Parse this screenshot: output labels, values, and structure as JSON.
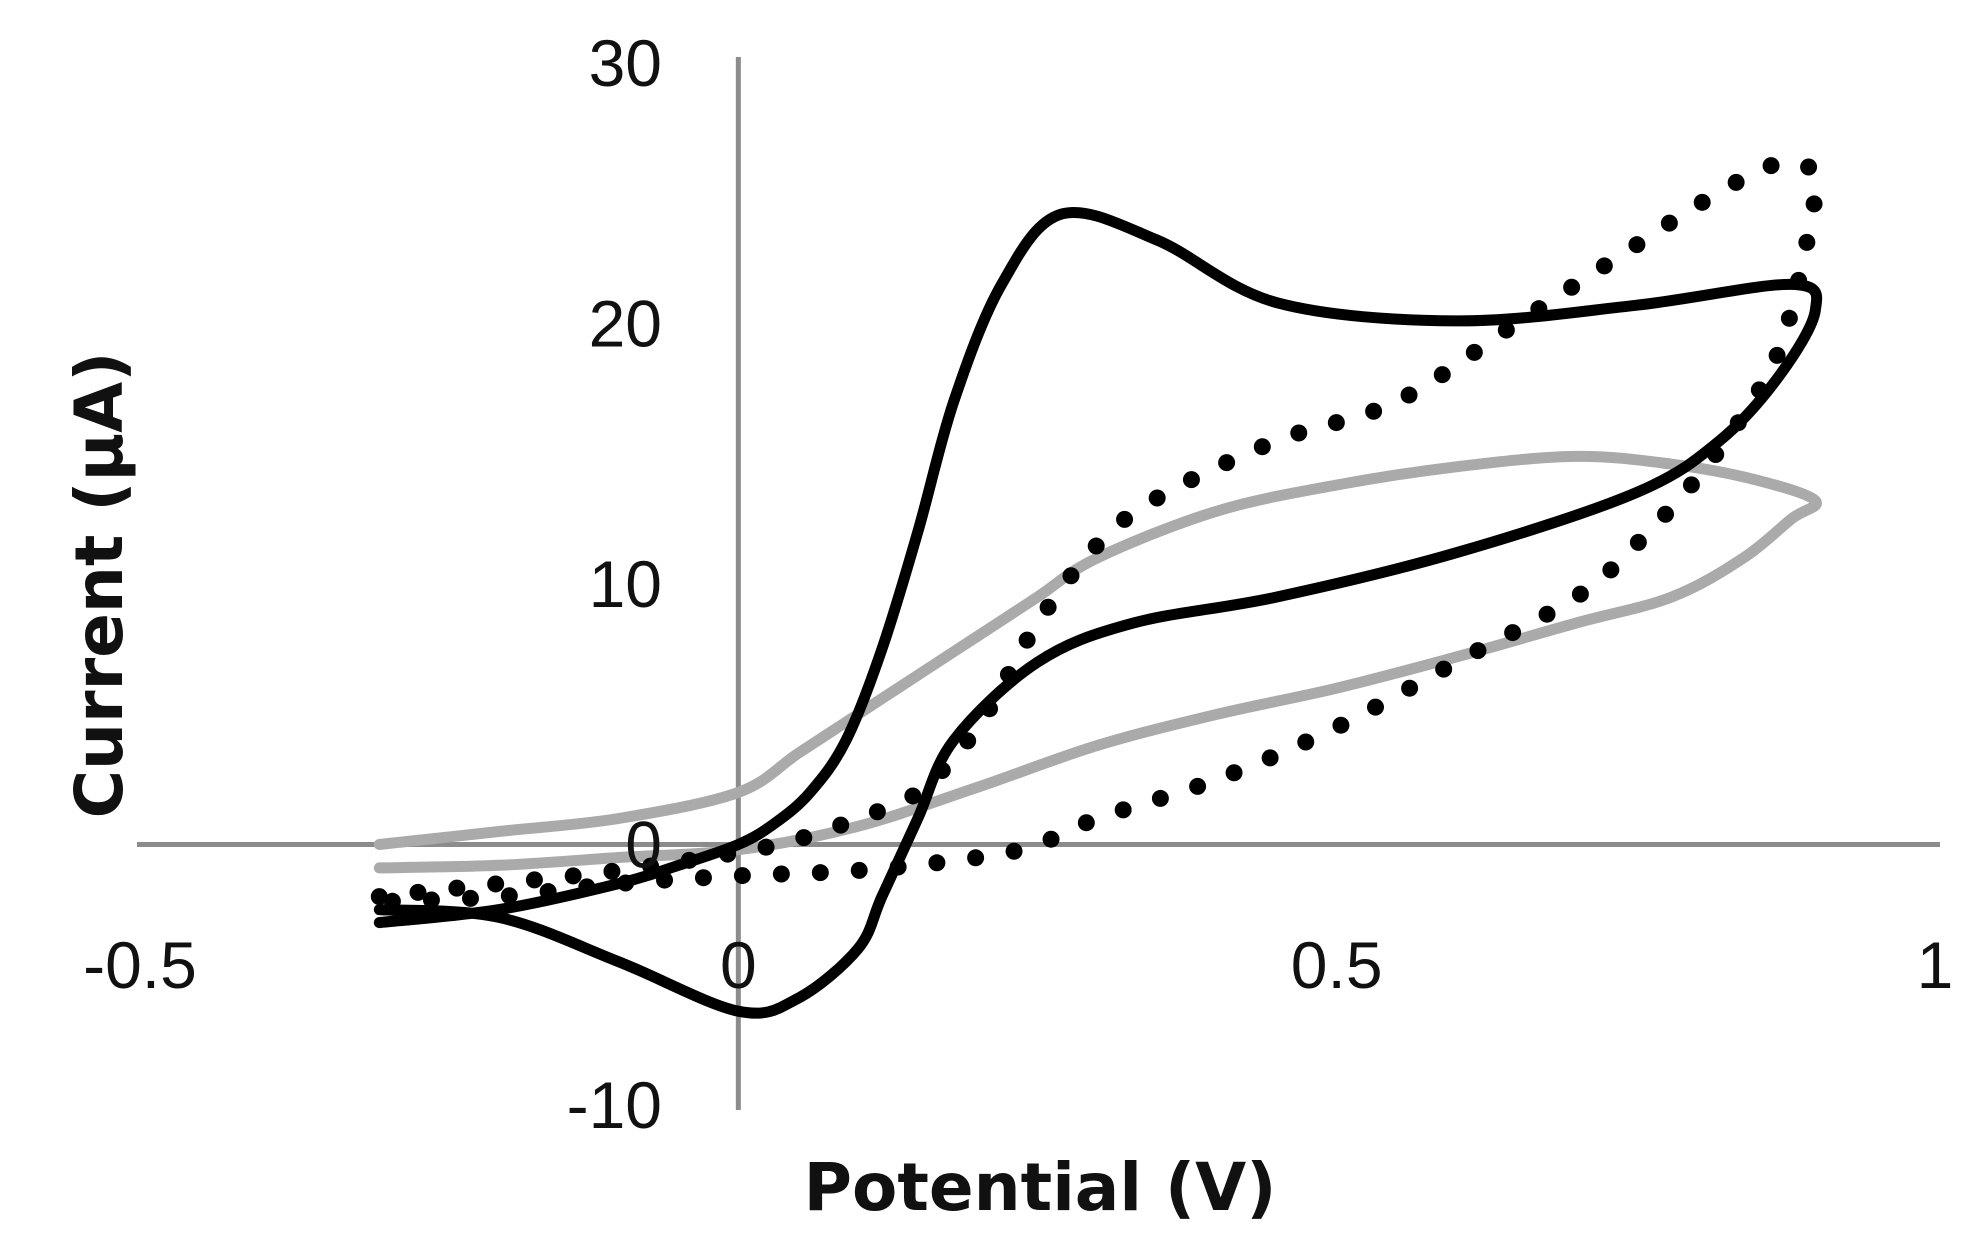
{
  "chart_data": {
    "type": "line",
    "title": "",
    "xlabel": "Potential (V)",
    "ylabel": "Current (μA)",
    "xlim": [
      -0.5,
      1
    ],
    "ylim": [
      -10,
      30
    ],
    "xticks": [
      {
        "value": -0.5,
        "label": "-0.5"
      },
      {
        "value": 0,
        "label": "0"
      },
      {
        "value": 0.5,
        "label": "0.5"
      },
      {
        "value": 1,
        "label": "1"
      }
    ],
    "yticks": [
      {
        "value": 30,
        "label": "30"
      },
      {
        "value": 20,
        "label": "20"
      },
      {
        "value": 10,
        "label": "10"
      },
      {
        "value": 0,
        "label": "0"
      },
      {
        "value": -10,
        "label": "-10"
      }
    ],
    "grid": false,
    "legend": "none",
    "series": [
      {
        "name": "solid black curve",
        "style": "solid",
        "color": "#000000",
        "x": [
          -0.3,
          -0.2,
          -0.1,
          -0.05,
          0.0,
          0.03,
          0.06,
          0.09,
          0.12,
          0.15,
          0.18,
          0.22,
          0.27,
          0.35,
          0.45,
          0.6,
          0.75,
          0.88,
          0.9,
          0.87,
          0.82,
          0.75,
          0.6,
          0.45,
          0.33,
          0.25,
          0.18,
          0.15,
          0.12,
          0.1,
          0.05,
          0.0,
          -0.1,
          -0.2,
          -0.3
        ],
        "y": [
          -3.0,
          -2.5,
          -1.5,
          -0.8,
          0.0,
          0.8,
          2.0,
          4.0,
          7.5,
          12.0,
          17.0,
          21.5,
          24.2,
          23.2,
          20.8,
          20.1,
          20.7,
          21.5,
          20.5,
          18.0,
          15.5,
          13.5,
          11.2,
          9.5,
          8.5,
          7.0,
          4.0,
          1.0,
          -2.0,
          -4.0,
          -5.9,
          -6.4,
          -4.5,
          -2.8,
          -2.5
        ]
      },
      {
        "name": "dotted black curve",
        "style": "dotted",
        "color": "#000000",
        "x": [
          -0.3,
          -0.2,
          -0.1,
          0.0,
          0.05,
          0.1,
          0.15,
          0.2,
          0.25,
          0.3,
          0.35,
          0.45,
          0.55,
          0.65,
          0.75,
          0.8,
          0.85,
          0.88,
          0.9,
          0.89,
          0.87,
          0.84,
          0.8,
          0.75,
          0.7,
          0.6,
          0.5,
          0.4,
          0.3,
          0.25,
          0.2,
          0.1,
          0.0,
          -0.1,
          -0.2,
          -0.3
        ],
        "y": [
          -2.0,
          -1.5,
          -1.0,
          -0.3,
          0.2,
          1.0,
          2.0,
          4.5,
          8.5,
          11.5,
          13.3,
          15.5,
          17.0,
          20.0,
          23.0,
          24.5,
          25.8,
          26.2,
          25.5,
          22.5,
          19.0,
          16.5,
          14.0,
          11.5,
          9.5,
          7.0,
          4.5,
          2.5,
          1.0,
          0.0,
          -0.5,
          -1.0,
          -1.2,
          -1.5,
          -2.0,
          -2.2
        ]
      },
      {
        "name": "gray curve",
        "style": "solid",
        "color": "#aaaaaa",
        "x": [
          -0.3,
          -0.2,
          -0.1,
          0.0,
          0.05,
          0.1,
          0.15,
          0.2,
          0.25,
          0.3,
          0.4,
          0.5,
          0.6,
          0.7,
          0.78,
          0.85,
          0.9,
          0.88,
          0.84,
          0.78,
          0.7,
          0.6,
          0.5,
          0.4,
          0.3,
          0.2,
          0.1,
          0.0,
          -0.1,
          -0.2,
          -0.3
        ],
        "y": [
          0.0,
          0.5,
          1.0,
          2.0,
          3.5,
          5.0,
          6.5,
          8.0,
          9.5,
          11.0,
          12.8,
          13.8,
          14.5,
          14.9,
          14.6,
          14.0,
          13.2,
          12.5,
          11.0,
          9.5,
          8.5,
          7.2,
          6.0,
          5.0,
          3.8,
          2.2,
          0.7,
          -0.2,
          -0.5,
          -0.8,
          -0.9
        ]
      }
    ]
  }
}
